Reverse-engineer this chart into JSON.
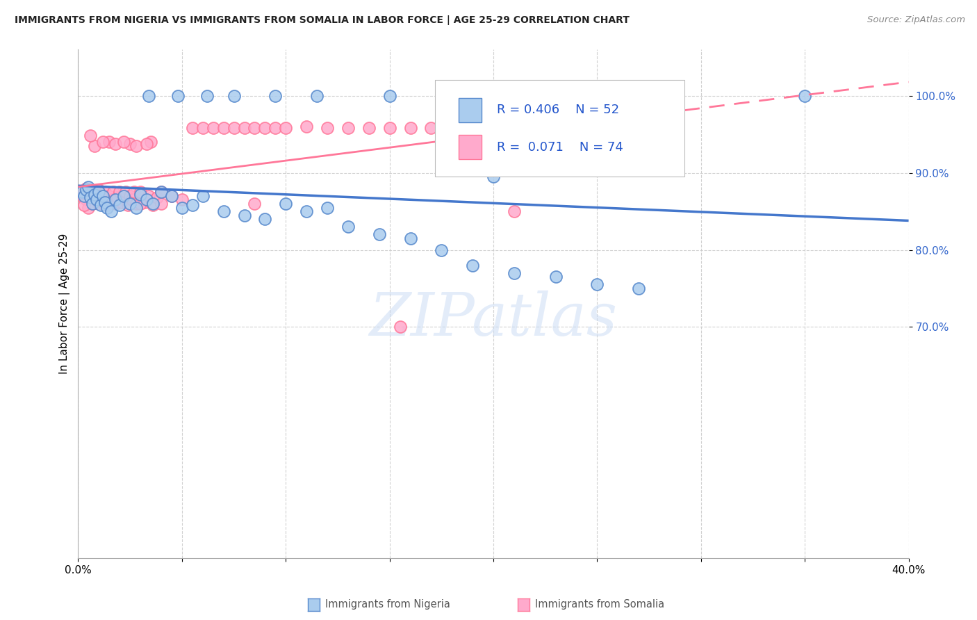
{
  "title": "IMMIGRANTS FROM NIGERIA VS IMMIGRANTS FROM SOMALIA IN LABOR FORCE | AGE 25-29 CORRELATION CHART",
  "source": "Source: ZipAtlas.com",
  "ylabel": "In Labor Force | Age 25-29",
  "legend_nigeria": "Immigrants from Nigeria",
  "legend_somalia": "Immigrants from Somalia",
  "R_nigeria": 0.406,
  "N_nigeria": 52,
  "R_somalia": 0.071,
  "N_somalia": 74,
  "color_nigeria_fill": "#AACCEE",
  "color_nigeria_edge": "#5588CC",
  "color_nigeria_line": "#4477CC",
  "color_somalia_fill": "#FFAACC",
  "color_somalia_edge": "#FF7799",
  "color_somalia_line": "#FF7799",
  "xlim_min": 0.0,
  "xlim_max": 0.4,
  "ylim_min": 0.4,
  "ylim_max": 1.06,
  "ytick_vals": [
    0.7,
    0.8,
    0.9,
    1.0
  ],
  "ytick_labels": [
    "70.0%",
    "80.0%",
    "90.0%",
    "100.0%"
  ],
  "xtick_vals": [
    0.0,
    0.05,
    0.1,
    0.15,
    0.2,
    0.25,
    0.3,
    0.35,
    0.4
  ],
  "xtick_labels": [
    "0.0%",
    "",
    "",
    "",
    "",
    "",
    "",
    "",
    "40.0%"
  ],
  "watermark_text": "ZIPatlas",
  "background_color": "#FFFFFF",
  "grid_color": "#CCCCCC",
  "yaxis_color": "#3366CC",
  "title_color": "#222222",
  "source_color": "#888888",
  "nigeria_x": [
    0.002,
    0.003,
    0.004,
    0.005,
    0.006,
    0.007,
    0.008,
    0.009,
    0.01,
    0.011,
    0.012,
    0.013,
    0.014,
    0.016,
    0.018,
    0.02,
    0.022,
    0.025,
    0.028,
    0.03,
    0.033,
    0.036,
    0.04,
    0.045,
    0.05,
    0.055,
    0.06,
    0.07,
    0.08,
    0.09,
    0.1,
    0.11,
    0.12,
    0.13,
    0.145,
    0.16,
    0.175,
    0.19,
    0.21,
    0.23,
    0.25,
    0.27,
    0.034,
    0.048,
    0.062,
    0.075,
    0.095,
    0.115,
    0.15,
    0.18,
    0.2,
    0.35
  ],
  "nigeria_y": [
    0.875,
    0.87,
    0.878,
    0.882,
    0.868,
    0.86,
    0.872,
    0.865,
    0.875,
    0.858,
    0.87,
    0.862,
    0.855,
    0.85,
    0.865,
    0.858,
    0.87,
    0.86,
    0.855,
    0.872,
    0.865,
    0.86,
    0.875,
    0.87,
    0.855,
    0.858,
    0.87,
    0.85,
    0.845,
    0.84,
    0.86,
    0.85,
    0.855,
    0.83,
    0.82,
    0.815,
    0.8,
    0.78,
    0.77,
    0.765,
    0.755,
    0.75,
    1.0,
    1.0,
    1.0,
    1.0,
    1.0,
    1.0,
    1.0,
    1.0,
    0.895,
    1.0
  ],
  "somalia_x": [
    0.002,
    0.003,
    0.004,
    0.004,
    0.005,
    0.005,
    0.006,
    0.007,
    0.008,
    0.009,
    0.01,
    0.01,
    0.011,
    0.012,
    0.013,
    0.014,
    0.015,
    0.016,
    0.017,
    0.018,
    0.019,
    0.02,
    0.021,
    0.022,
    0.023,
    0.024,
    0.025,
    0.026,
    0.027,
    0.028,
    0.03,
    0.032,
    0.034,
    0.036,
    0.038,
    0.04,
    0.045,
    0.05,
    0.055,
    0.06,
    0.065,
    0.07,
    0.075,
    0.08,
    0.085,
    0.09,
    0.095,
    0.1,
    0.11,
    0.12,
    0.13,
    0.14,
    0.15,
    0.16,
    0.17,
    0.18,
    0.19,
    0.2,
    0.015,
    0.025,
    0.035,
    0.008,
    0.012,
    0.018,
    0.022,
    0.028,
    0.033,
    0.006,
    0.04,
    0.03,
    0.085,
    0.155,
    0.21,
    0.003
  ],
  "somalia_y": [
    0.87,
    0.875,
    0.865,
    0.88,
    0.875,
    0.855,
    0.878,
    0.86,
    0.875,
    0.868,
    0.86,
    0.878,
    0.87,
    0.862,
    0.875,
    0.858,
    0.87,
    0.865,
    0.875,
    0.86,
    0.868,
    0.875,
    0.862,
    0.87,
    0.875,
    0.858,
    0.87,
    0.865,
    0.875,
    0.86,
    0.875,
    0.862,
    0.87,
    0.858,
    0.868,
    0.875,
    0.87,
    0.865,
    0.958,
    0.958,
    0.958,
    0.958,
    0.958,
    0.958,
    0.958,
    0.958,
    0.958,
    0.958,
    0.96,
    0.958,
    0.958,
    0.958,
    0.958,
    0.958,
    0.958,
    0.958,
    0.96,
    0.958,
    0.94,
    0.938,
    0.94,
    0.935,
    0.94,
    0.938,
    0.94,
    0.935,
    0.938,
    0.948,
    0.86,
    0.86,
    0.86,
    0.7,
    0.85,
    0.858
  ]
}
